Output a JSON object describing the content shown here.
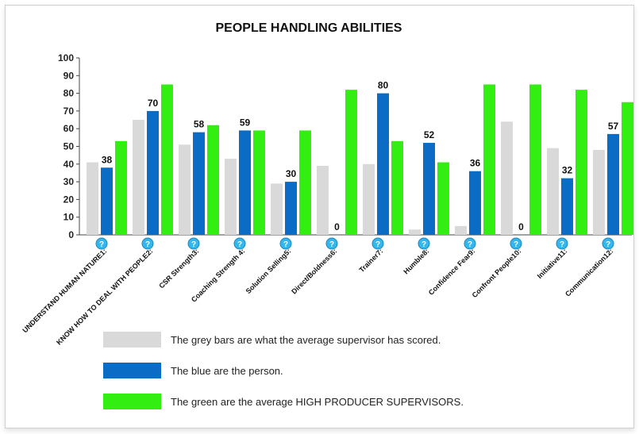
{
  "chart_data": {
    "type": "bar",
    "title": "PEOPLE HANDLING ABILITIES",
    "ylim": [
      0,
      100
    ],
    "yticks": [
      0,
      10,
      20,
      30,
      40,
      50,
      60,
      70,
      80,
      90,
      100
    ],
    "categories": [
      "UNDERSTAND HUMAN NATURE1:",
      "KNOW HOW TO DEAL WITH PEOPLE2:",
      "CSR Strength3:",
      "Coaching Strength 4:",
      "Solution Selling5:",
      "Direct/Boldness6:",
      "Trainer7:",
      "Humble8:",
      "Confidence Fear9:",
      "Confront People10:",
      "Initiative11:",
      "Communication12:"
    ],
    "series": [
      {
        "name": "Average supervisor",
        "color": "#d9d9d9",
        "values": [
          41,
          65,
          51,
          43,
          29,
          39,
          40,
          3,
          5,
          64,
          49,
          48
        ]
      },
      {
        "name": "Person",
        "color": "#0a6cc4",
        "values": [
          38,
          70,
          58,
          59,
          30,
          0,
          80,
          52,
          36,
          0,
          32,
          57
        ]
      },
      {
        "name": "High producer supervisors",
        "color": "#33ee11",
        "values": [
          53,
          85,
          62,
          59,
          59,
          82,
          53,
          41,
          85,
          85,
          82,
          75
        ]
      }
    ],
    "help_marker": "?"
  },
  "legend": [
    {
      "label": "The grey bars are what the average supervisor has scored.",
      "color": "#d9d9d9"
    },
    {
      "label": "The blue are the person.",
      "color": "#0a6cc4"
    },
    {
      "label": "The green are the average HIGH PRODUCER SUPERVISORS.",
      "color": "#33ee11"
    }
  ]
}
